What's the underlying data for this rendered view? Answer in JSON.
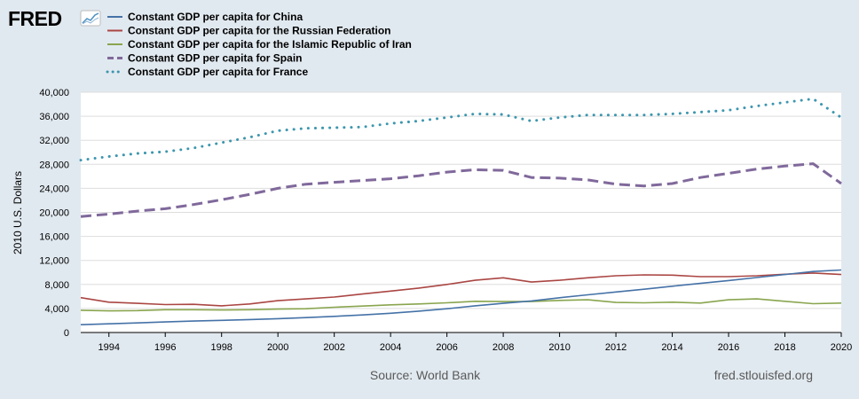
{
  "logo": {
    "text": "FRED",
    "icon": "trend-line-icon"
  },
  "colors": {
    "background": "#e1e9f0",
    "plot_background": "#ffffff",
    "gridline": "#dddddd",
    "axis": "#000000",
    "china": "#4572a7",
    "russia": "#aa4643",
    "iran": "#89a54e",
    "spain": "#80699b",
    "france": "#3d96ae"
  },
  "footer": {
    "source": "Source: World Bank",
    "site": "fred.stlouisfed.org"
  },
  "chart_data": {
    "type": "line",
    "title": "",
    "xlabel": "",
    "ylabel": "2010 U.S. Dollars",
    "xlim": [
      1993,
      2020
    ],
    "ylim": [
      0,
      40000
    ],
    "y_ticks": [
      0,
      4000,
      8000,
      12000,
      16000,
      20000,
      24000,
      28000,
      32000,
      36000,
      40000
    ],
    "y_tick_labels": [
      "0",
      "4,000",
      "8,000",
      "12,000",
      "16,000",
      "20,000",
      "24,000",
      "28,000",
      "32,000",
      "36,000",
      "40,000"
    ],
    "x_ticks": [
      1994,
      1996,
      1998,
      2000,
      2002,
      2004,
      2006,
      2008,
      2010,
      2012,
      2014,
      2016,
      2018,
      2020
    ],
    "x_tick_labels": [
      "1994",
      "1996",
      "1998",
      "2000",
      "2002",
      "2004",
      "2006",
      "2008",
      "2010",
      "2012",
      "2014",
      "2016",
      "2018",
      "2020"
    ],
    "grid": true,
    "legend_position": "top-left",
    "x": [
      1993,
      1994,
      1995,
      1996,
      1997,
      1998,
      1999,
      2000,
      2001,
      2002,
      2003,
      2004,
      2005,
      2006,
      2007,
      2008,
      2009,
      2010,
      2011,
      2012,
      2013,
      2014,
      2015,
      2016,
      2017,
      2018,
      2019,
      2020
    ],
    "series": [
      {
        "name": "Constant GDP per capita for China",
        "color": "#4572a7",
        "dash": "solid",
        "values": [
          1300,
          1450,
          1600,
          1750,
          1900,
          2020,
          2150,
          2300,
          2480,
          2680,
          2920,
          3200,
          3550,
          3950,
          4450,
          4850,
          5250,
          5780,
          6280,
          6750,
          7200,
          7700,
          8180,
          8650,
          9150,
          9650,
          10150,
          10400
        ]
      },
      {
        "name": "Constant GDP per capita for the Russian Federation",
        "color": "#aa4643",
        "dash": "solid",
        "values": [
          5800,
          5050,
          4850,
          4650,
          4700,
          4450,
          4750,
          5300,
          5600,
          5900,
          6400,
          6900,
          7400,
          8000,
          8700,
          9100,
          8400,
          8700,
          9100,
          9450,
          9600,
          9550,
          9300,
          9300,
          9450,
          9700,
          9900,
          9650
        ]
      },
      {
        "name": "Constant GDP per capita for the Islamic Republic of Iran",
        "color": "#89a54e",
        "dash": "solid",
        "values": [
          3700,
          3600,
          3650,
          3800,
          3800,
          3750,
          3800,
          3900,
          3950,
          4200,
          4400,
          4600,
          4750,
          4950,
          5200,
          5150,
          5150,
          5350,
          5450,
          5000,
          4950,
          5050,
          4900,
          5450,
          5600,
          5200,
          4800,
          4900
        ]
      },
      {
        "name": "Constant GDP per capita for Spain",
        "color": "#80699b",
        "dash": "dashed",
        "values": [
          19300,
          19700,
          20200,
          20600,
          21300,
          22100,
          23000,
          24000,
          24700,
          25000,
          25300,
          25600,
          26100,
          26700,
          27100,
          27000,
          25800,
          25700,
          25400,
          24700,
          24400,
          24800,
          25800,
          26500,
          27200,
          27700,
          28100,
          24800
        ]
      },
      {
        "name": "Constant GDP per capita for France",
        "color": "#3d96ae",
        "dash": "dotted",
        "values": [
          28700,
          29300,
          29800,
          30100,
          30700,
          31600,
          32500,
          33600,
          34000,
          34100,
          34200,
          34800,
          35200,
          35800,
          36400,
          36300,
          35200,
          35800,
          36200,
          36200,
          36200,
          36400,
          36700,
          37000,
          37700,
          38300,
          38900,
          35800
        ]
      }
    ]
  }
}
